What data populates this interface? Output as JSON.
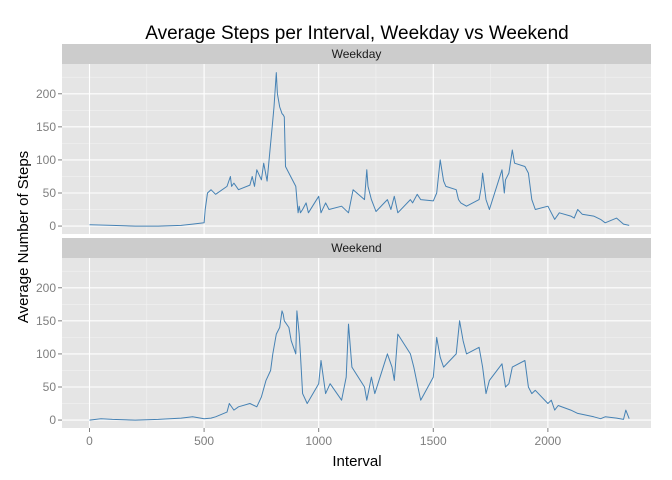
{
  "chart_data": {
    "type": "line",
    "title": "Average Steps per Interval, Weekday vs Weekend",
    "xlabel": "Interval",
    "ylabel": "Average Number of Steps",
    "xlim": [
      -120,
      2450
    ],
    "ylim": [
      -12,
      245
    ],
    "x_ticks": [
      0,
      500,
      1000,
      1500,
      2000
    ],
    "y_ticks": [
      0,
      50,
      100,
      150,
      200
    ],
    "x_minor": [
      250,
      750,
      1250,
      1750,
      2250
    ],
    "y_minor": [
      25,
      75,
      125,
      175,
      225
    ],
    "grid": true,
    "facets": [
      "Weekday",
      "Weekend"
    ],
    "colors": {
      "line": "#4682b4",
      "panel": "#e5e5e5",
      "strip": "#cccccc",
      "grid_major": "#ffffff",
      "grid_minor": "#f2f2f2",
      "tick_label": "#7f7f7f"
    },
    "series": [
      {
        "name": "Weekday",
        "x": [
          0,
          100,
          200,
          300,
          400,
          450,
          500,
          505,
          515,
          530,
          550,
          600,
          615,
          620,
          630,
          650,
          700,
          710,
          720,
          730,
          750,
          760,
          775,
          800,
          805,
          815,
          820,
          830,
          835,
          840,
          845,
          850,
          855,
          900,
          905,
          910,
          915,
          920,
          930,
          945,
          955,
          1000,
          1010,
          1030,
          1045,
          1100,
          1130,
          1150,
          1200,
          1210,
          1215,
          1230,
          1250,
          1300,
          1315,
          1330,
          1345,
          1400,
          1410,
          1430,
          1445,
          1500,
          1515,
          1530,
          1545,
          1555,
          1600,
          1610,
          1620,
          1645,
          1700,
          1710,
          1715,
          1730,
          1745,
          1800,
          1810,
          1815,
          1830,
          1845,
          1855,
          1900,
          1915,
          1930,
          1945,
          2000,
          2015,
          2030,
          2050,
          2100,
          2115,
          2130,
          2150,
          2200,
          2230,
          2250,
          2300,
          2330,
          2355
        ],
        "y": [
          2,
          1,
          0,
          0,
          1,
          3,
          5,
          25,
          50,
          55,
          48,
          60,
          75,
          60,
          65,
          55,
          62,
          75,
          60,
          85,
          70,
          95,
          68,
          160,
          180,
          232,
          200,
          180,
          175,
          170,
          168,
          165,
          90,
          60,
          40,
          20,
          30,
          20,
          25,
          35,
          20,
          45,
          20,
          35,
          25,
          30,
          20,
          55,
          40,
          85,
          60,
          40,
          22,
          40,
          25,
          45,
          20,
          40,
          35,
          48,
          40,
          38,
          50,
          100,
          68,
          60,
          55,
          40,
          35,
          30,
          40,
          60,
          80,
          40,
          25,
          85,
          50,
          70,
          80,
          115,
          95,
          90,
          80,
          40,
          25,
          30,
          20,
          10,
          20,
          15,
          12,
          25,
          18,
          15,
          10,
          5,
          12,
          3,
          1
        ]
      },
      {
        "name": "Weekend",
        "x": [
          0,
          50,
          100,
          200,
          300,
          400,
          450,
          500,
          530,
          550,
          600,
          610,
          630,
          650,
          700,
          730,
          750,
          770,
          790,
          800,
          815,
          830,
          840,
          845,
          850,
          870,
          880,
          900,
          905,
          915,
          920,
          930,
          950,
          1000,
          1010,
          1030,
          1050,
          1100,
          1120,
          1130,
          1145,
          1200,
          1210,
          1230,
          1245,
          1300,
          1320,
          1330,
          1345,
          1400,
          1415,
          1430,
          1445,
          1500,
          1515,
          1530,
          1545,
          1600,
          1615,
          1630,
          1645,
          1700,
          1715,
          1730,
          1745,
          1800,
          1815,
          1830,
          1845,
          1900,
          1915,
          1930,
          1945,
          2000,
          2015,
          2030,
          2045,
          2100,
          2130,
          2200,
          2230,
          2250,
          2300,
          2330,
          2340,
          2355
        ],
        "y": [
          0,
          2,
          1,
          0,
          1,
          3,
          5,
          2,
          3,
          5,
          12,
          25,
          15,
          20,
          25,
          20,
          35,
          60,
          75,
          100,
          130,
          140,
          165,
          160,
          150,
          140,
          120,
          100,
          165,
          130,
          100,
          40,
          25,
          55,
          90,
          40,
          55,
          30,
          65,
          145,
          80,
          50,
          30,
          65,
          40,
          100,
          80,
          60,
          130,
          100,
          80,
          55,
          30,
          65,
          125,
          95,
          80,
          100,
          150,
          120,
          100,
          110,
          80,
          40,
          60,
          85,
          50,
          55,
          80,
          90,
          50,
          40,
          45,
          25,
          30,
          15,
          22,
          15,
          10,
          5,
          2,
          5,
          3,
          1,
          15,
          2
        ]
      }
    ]
  }
}
